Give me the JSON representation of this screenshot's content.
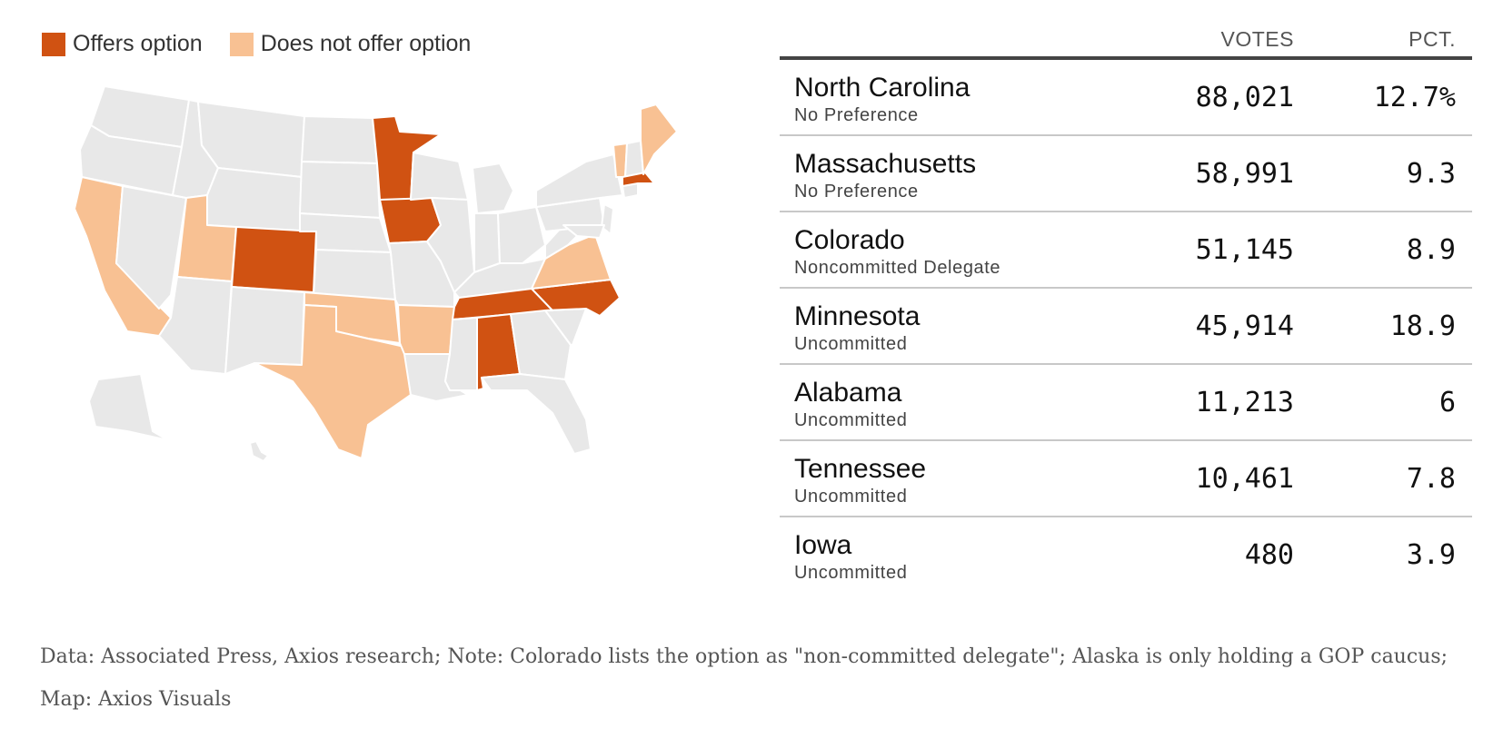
{
  "legend": {
    "offers_label": "Offers option",
    "not_offer_label": "Does not offer option",
    "offers_color": "#d05212",
    "not_offer_color": "#f8c193",
    "neutral_color": "#e8e8e8"
  },
  "map": {
    "offers_option": [
      "North Carolina",
      "Massachusetts",
      "Colorado",
      "Minnesota",
      "Alabama",
      "Tennessee",
      "Iowa"
    ],
    "does_not_offer_option": [
      "California",
      "Utah",
      "Texas",
      "Oklahoma",
      "Arkansas",
      "Virginia",
      "Vermont",
      "Maine"
    ]
  },
  "table": {
    "votes_header": "VOTES",
    "pct_header": "PCT.",
    "rows": [
      {
        "state": "North Carolina",
        "option": "No Preference",
        "votes": "88,021",
        "pct": "12.7%"
      },
      {
        "state": "Massachusetts",
        "option": "No Preference",
        "votes": "58,991",
        "pct": "9.3"
      },
      {
        "state": "Colorado",
        "option": "Noncommitted Delegate",
        "votes": "51,145",
        "pct": "8.9"
      },
      {
        "state": "Minnesota",
        "option": "Uncommitted",
        "votes": "45,914",
        "pct": "18.9"
      },
      {
        "state": "Alabama",
        "option": "Uncommitted",
        "votes": "11,213",
        "pct": "6"
      },
      {
        "state": "Tennessee",
        "option": "Uncommitted",
        "votes": "10,461",
        "pct": "7.8"
      },
      {
        "state": "Iowa",
        "option": "Uncommitted",
        "votes": "480",
        "pct": "3.9"
      }
    ]
  },
  "footnote": "Data: Associated Press, Axios research; Note: Colorado lists the option as \"non-committed delegate\"; Alaska is only holding a GOP caucus; Map: Axios Visuals"
}
